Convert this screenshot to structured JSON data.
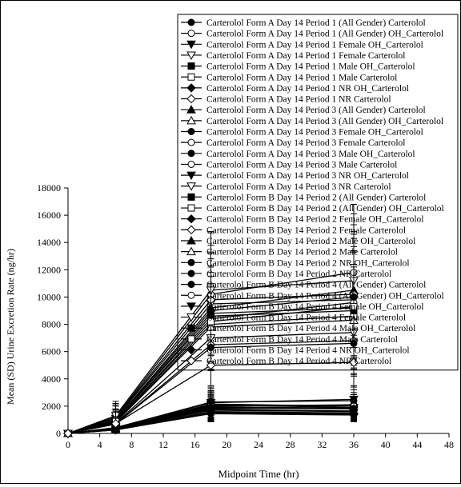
{
  "chart_data": {
    "type": "line",
    "xlabel": "Midpoint Time (hr)",
    "ylabel": "Mean (SD) Urine Excretion Rate (ng/hr)",
    "xlim": [
      0,
      48
    ],
    "ylim": [
      0,
      18000
    ],
    "x_ticks": [
      0,
      4,
      8,
      12,
      16,
      20,
      24,
      28,
      32,
      36,
      40,
      44,
      48
    ],
    "y_ticks": [
      0,
      2000,
      4000,
      6000,
      8000,
      10000,
      12000,
      14000,
      16000,
      18000
    ],
    "x": [
      0,
      6,
      18,
      36
    ],
    "legend_placement": "top-right",
    "series": [
      {
        "name": "Carterolol Form A  Day 14  Period 1 (All Gender) Carterolol",
        "marker": "circle-filled",
        "values": [
          0,
          900,
          8800,
          9200
        ],
        "sd": [
          0,
          700,
          3500,
          4200
        ]
      },
      {
        "name": "Carterolol Form A  Day 14  Period 1 (All Gender) OH_Carterolol",
        "marker": "circle-open",
        "values": [
          0,
          350,
          1900,
          1800
        ],
        "sd": [
          0,
          250,
          900,
          700
        ]
      },
      {
        "name": "Carterolol Form A  Day 14  Period 1  Female  OH_Carterolol",
        "marker": "triangle-down-filled",
        "values": [
          0,
          400,
          2100,
          1900
        ],
        "sd": [
          0,
          300,
          1000,
          800
        ]
      },
      {
        "name": "Carterolol Form A  Day 14  Period 1  Female  Carterolol",
        "marker": "triangle-down-open",
        "values": [
          0,
          1100,
          9500,
          9800
        ],
        "sd": [
          0,
          900,
          3800,
          4500
        ]
      },
      {
        "name": "Carterolol Form A  Day 14  Period 1  Male  OH_Carterolol",
        "marker": "square-filled",
        "values": [
          0,
          300,
          1700,
          1600
        ],
        "sd": [
          0,
          200,
          800,
          600
        ]
      },
      {
        "name": "Carterolol Form A  Day 14  Period 1  Male  Carterolol",
        "marker": "square-open",
        "values": [
          0,
          800,
          8000,
          8600
        ],
        "sd": [
          0,
          600,
          3000,
          3800
        ]
      },
      {
        "name": "Carterolol Form A  Day 14  Period 1  NR  OH_Carterolol",
        "marker": "diamond-filled",
        "values": [
          0,
          250,
          1500,
          1400
        ],
        "sd": [
          0,
          150,
          600,
          500
        ]
      },
      {
        "name": "Carterolol Form A  Day 14  Period 1  NR  Carterolol",
        "marker": "diamond-open",
        "values": [
          0,
          700,
          6500,
          6800
        ],
        "sd": [
          0,
          500,
          1800,
          2500
        ]
      },
      {
        "name": "Carterolol Form A  Day 14  Period 3 (All Gender) Carterolol",
        "marker": "triangle-up-filled",
        "values": [
          0,
          1000,
          9200,
          10500
        ],
        "sd": [
          0,
          800,
          4000,
          4800
        ]
      },
      {
        "name": "Carterolol Form A  Day 14  Period 3 (All Gender) OH_Carterolol",
        "marker": "triangle-up-open",
        "values": [
          0,
          380,
          2000,
          2100
        ],
        "sd": [
          0,
          260,
          950,
          900
        ]
      },
      {
        "name": "Carterolol Form A  Day 14  Period 3  Female  OH_Carterolol",
        "marker": "circle-filled",
        "values": [
          0,
          420,
          2300,
          2400
        ],
        "sd": [
          0,
          300,
          1100,
          1000
        ]
      },
      {
        "name": "Carterolol Form A  Day 14  Period 3  Female  Carterolol",
        "marker": "circle-open",
        "values": [
          0,
          1200,
          10200,
          11800
        ],
        "sd": [
          0,
          1000,
          4500,
          5000
        ]
      },
      {
        "name": "Carterolol Form A  Day 14  Period 3  Male  OH_Carterolol",
        "marker": "circle-filled",
        "values": [
          0,
          320,
          1800,
          1900
        ],
        "sd": [
          0,
          220,
          850,
          800
        ]
      },
      {
        "name": "Carterolol Form A  Day 14  Period 3  Male  Carterolol",
        "marker": "circle-open",
        "values": [
          0,
          850,
          8400,
          9600
        ],
        "sd": [
          0,
          650,
          3400,
          4100
        ]
      },
      {
        "name": "Carterolol Form A  Day 14  Period 3  NR  OH_Carterolol",
        "marker": "triangle-down-filled",
        "values": [
          0,
          270,
          1600,
          1500
        ],
        "sd": [
          0,
          170,
          650,
          550
        ]
      },
      {
        "name": "Carterolol Form A  Day 14  Period 3  NR  Carterolol",
        "marker": "triangle-down-open",
        "values": [
          0,
          750,
          7000,
          7400
        ],
        "sd": [
          0,
          550,
          2000,
          2700
        ]
      },
      {
        "name": "Carterolol Form B  Day 14  Period 2 (All Gender) Carterolol",
        "marker": "square-filled",
        "values": [
          0,
          950,
          8600,
          9000
        ],
        "sd": [
          0,
          750,
          3600,
          4300
        ]
      },
      {
        "name": "Carterolol Form B  Day 14  Period 2 (All Gender) OH_Carterolol",
        "marker": "square-open",
        "values": [
          0,
          360,
          1950,
          1850
        ],
        "sd": [
          0,
          250,
          900,
          750
        ]
      },
      {
        "name": "Carterolol Form B  Day 14  Period 2  Female  OH_Carterolol",
        "marker": "diamond-filled",
        "values": [
          0,
          410,
          2150,
          2000
        ],
        "sd": [
          0,
          300,
          1000,
          850
        ]
      },
      {
        "name": "Carterolol Form B  Day 14  Period 2  Female  Carterolol",
        "marker": "diamond-open",
        "values": [
          0,
          1150,
          9800,
          10200
        ],
        "sd": [
          0,
          950,
          4000,
          4600
        ]
      },
      {
        "name": "Carterolol Form B  Day 14  Period 2  Male  OH_Carterolol",
        "marker": "triangle-up-filled",
        "values": [
          0,
          310,
          1750,
          1650
        ],
        "sd": [
          0,
          210,
          820,
          650
        ]
      },
      {
        "name": "Carterolol Form B  Day 14  Period 2  Male  Carterolol",
        "marker": "triangle-up-open",
        "values": [
          0,
          820,
          7800,
          8300
        ],
        "sd": [
          0,
          600,
          3100,
          3900
        ]
      },
      {
        "name": "Carterolol Form B  Day 14  Period 2  NR  OH_Carterolol",
        "marker": "circle-filled",
        "values": [
          0,
          260,
          1450,
          1350
        ],
        "sd": [
          0,
          160,
          600,
          500
        ]
      },
      {
        "name": "Carterolol Form B  Day 14  Period 2  NR  Carterolol",
        "marker": "circle-filled",
        "values": [
          0,
          680,
          6300,
          6600
        ],
        "sd": [
          0,
          480,
          1700,
          2400
        ]
      },
      {
        "name": "Carterolol Form B  Day 14  Period 4 (All Gender) Carterolol",
        "marker": "circle-filled",
        "values": [
          0,
          980,
          9000,
          10000
        ],
        "sd": [
          0,
          780,
          3800,
          4600
        ]
      },
      {
        "name": "Carterolol Form B  Day 14  Period 4 (All Gender) OH_Carterolol",
        "marker": "circle-open",
        "values": [
          0,
          370,
          2050,
          2000
        ],
        "sd": [
          0,
          260,
          950,
          850
        ]
      },
      {
        "name": "Carterolol Form B  Day 14  Period 4  Female  OH_Carterolol",
        "marker": "triangle-down-filled",
        "values": [
          0,
          430,
          2250,
          2500
        ],
        "sd": [
          0,
          310,
          1050,
          1000
        ]
      },
      {
        "name": "Carterolol Form B  Day 14  Period 4  Female  Carterolol",
        "marker": "triangle-down-open",
        "values": [
          0,
          1300,
          10500,
          11200
        ],
        "sd": [
          0,
          1050,
          4300,
          4900
        ]
      },
      {
        "name": "Carterolol Form B  Day 14  Period 4  Male  OH_Carterolol",
        "marker": "square-filled",
        "values": [
          0,
          330,
          1850,
          1800
        ],
        "sd": [
          0,
          230,
          860,
          750
        ]
      },
      {
        "name": "Carterolol Form B  Day 14  Period 4  Male  Carterolol",
        "marker": "square-open",
        "values": [
          0,
          870,
          8200,
          9300
        ],
        "sd": [
          0,
          660,
          3300,
          4000
        ]
      },
      {
        "name": "Carterolol Form B  Day 14  Period 4  NR  OH_Carterolol",
        "marker": "diamond-filled",
        "values": [
          0,
          280,
          1550,
          1450
        ],
        "sd": [
          0,
          180,
          620,
          520
        ]
      },
      {
        "name": "Carterolol Form B  Day 14  Period 4  NR  Carterolol",
        "marker": "diamond-open",
        "values": [
          0,
          720,
          5000,
          5200
        ],
        "sd": [
          0,
          520,
          1500,
          2000
        ]
      }
    ]
  }
}
